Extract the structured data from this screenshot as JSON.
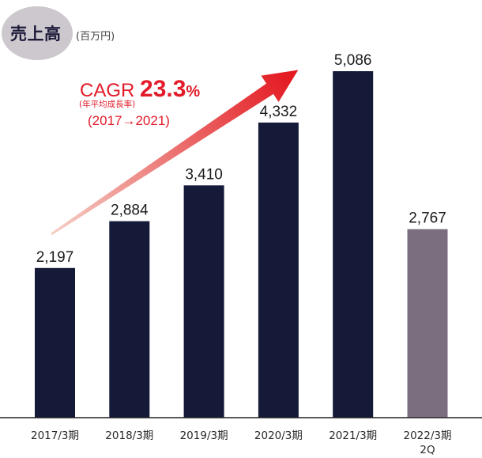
{
  "header": {
    "title": "売上高",
    "unit": "(百万円)"
  },
  "cagr": {
    "label": "CAGR ",
    "value": "23.3",
    "percent": "%",
    "note": "(年平均成長率)",
    "period": "(2017→2021)"
  },
  "colors": {
    "bar_main": "#141a37",
    "bar_highlight": "#7b6f7f",
    "arrow_start": "#f4d1c7",
    "arrow_end": "#e3141c",
    "accent_red": "#e21b2a"
  },
  "chart_data": {
    "type": "bar",
    "categories": [
      "2017/3期",
      "2018/3期",
      "2019/3期",
      "2020/3期",
      "2021/3期",
      "2022/3期\n2Q"
    ],
    "values": [
      2197,
      2884,
      3410,
      4332,
      5086,
      2767
    ],
    "value_labels": [
      "2,197",
      "2,884",
      "3,410",
      "4,332",
      "5,086",
      "2,767"
    ],
    "highlight_index": 5,
    "ylim": [
      0,
      5500
    ],
    "xlabel": "",
    "ylabel": "",
    "grid": false
  }
}
